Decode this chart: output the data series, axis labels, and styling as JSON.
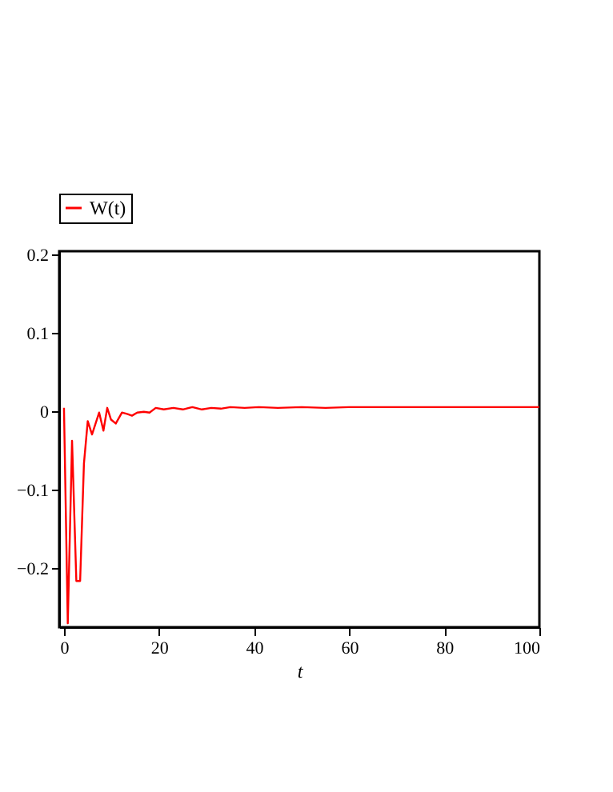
{
  "chart_data": {
    "type": "line",
    "xlabel": "t",
    "legend": "top",
    "xlim": [
      -1,
      100
    ],
    "ylim": [
      -0.275,
      0.205
    ],
    "xticks": [
      0,
      20,
      40,
      60,
      80,
      100
    ],
    "yticks": [
      -0.2,
      -0.1,
      0,
      0.1,
      0.2
    ],
    "grid": false,
    "marker": "none",
    "line_style": "solid",
    "series": [
      {
        "name": "W(t)",
        "color": "#ff0000",
        "x": [
          0,
          0.8,
          1.7,
          2.6,
          3.4,
          4.2,
          5.0,
          5.9,
          7.4,
          8.3,
          9.1,
          9.9,
          10.9,
          12.2,
          13.4,
          14.3,
          15.4,
          16.8,
          18,
          19.3,
          21,
          23,
          25,
          27,
          29,
          31,
          33,
          35,
          38,
          41,
          45,
          50,
          55,
          60,
          70,
          80,
          90,
          100
        ],
        "values": [
          0.005,
          -0.27,
          -0.037,
          -0.216,
          -0.216,
          -0.066,
          -0.012,
          -0.029,
          -0.001,
          -0.024,
          0.005,
          -0.01,
          -0.015,
          -0.001,
          -0.003,
          -0.005,
          -0.001,
          0.0,
          -0.001,
          0.005,
          0.003,
          0.005,
          0.003,
          0.006,
          0.003,
          0.005,
          0.004,
          0.006,
          0.005,
          0.006,
          0.005,
          0.006,
          0.005,
          0.006,
          0.006,
          0.006,
          0.006,
          0.006
        ]
      }
    ]
  }
}
